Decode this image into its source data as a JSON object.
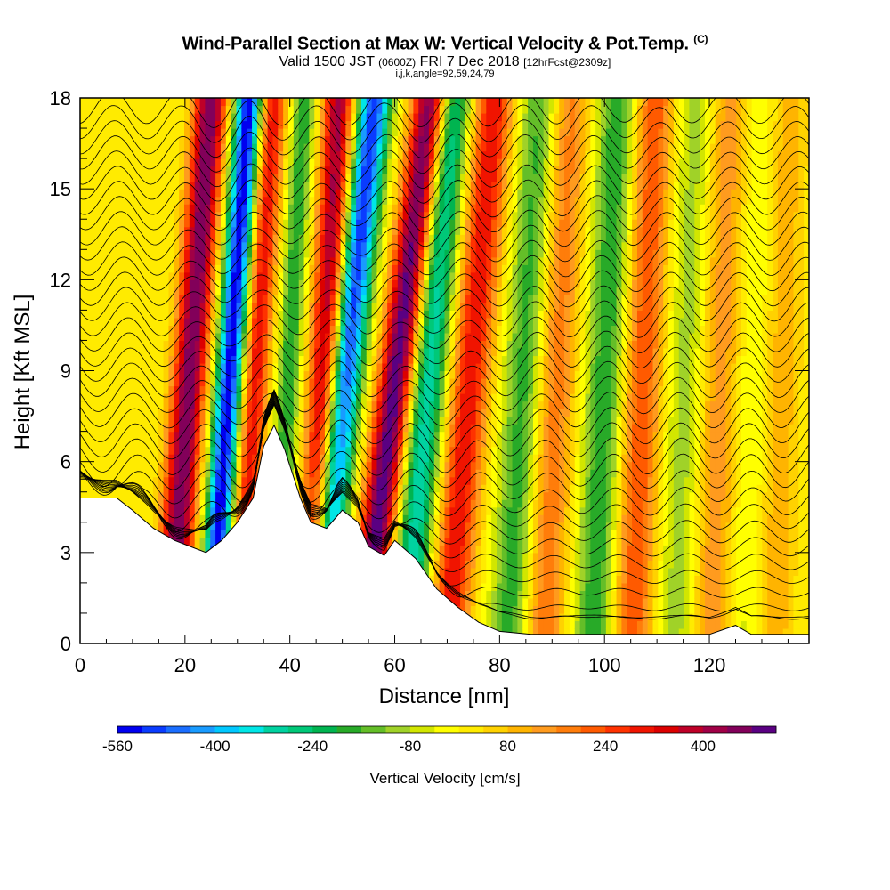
{
  "title": {
    "main": "Wind-Parallel Section at Max W: Vertical Velocity & Pot.Temp.",
    "mark": "(C)",
    "valid_prefix": "Valid 1500 JST",
    "valid_utc": "(0600Z)",
    "valid_date": "FRI 7 Dec 2018",
    "forecast": "[12hrFcst@2309z]",
    "params": "i,j,k,angle=92,59,24,79"
  },
  "chart_data": {
    "type": "heatmap",
    "xlabel": "Distance [nm]",
    "ylabel": "Height [Kft MSL]",
    "xlim": [
      0,
      139
    ],
    "ylim": [
      0,
      18
    ],
    "xticks": [
      0,
      20,
      40,
      60,
      80,
      100,
      120
    ],
    "yticks": [
      0,
      3,
      6,
      9,
      12,
      15,
      18
    ],
    "grid": false,
    "colorbar": {
      "label": "Vertical Velocity [cm/s]",
      "placement": "bottom",
      "range": [
        -560,
        520
      ],
      "step": 40,
      "tick_labels": [
        -560,
        -400,
        -240,
        -80,
        80,
        240,
        400
      ],
      "colors": [
        "#0000f0",
        "#0a3cff",
        "#1a6eff",
        "#199bff",
        "#00c8ff",
        "#00e6e6",
        "#00d2a0",
        "#00c878",
        "#00b450",
        "#28aa28",
        "#64be28",
        "#a0d228",
        "#d2e600",
        "#ffff00",
        "#ffeb00",
        "#ffd200",
        "#ffb400",
        "#ff9b1e",
        "#ff7d0a",
        "#ff5a00",
        "#ff3200",
        "#f01400",
        "#dc0000",
        "#be0028",
        "#a00046",
        "#82005a",
        "#5a0082"
      ]
    },
    "updraft_bands": [
      {
        "x_base": 17,
        "lean": 0.44,
        "width": 3.2,
        "w": 480
      },
      {
        "x_base": 30,
        "lean": 0.38,
        "width": 2.6,
        "w": 320
      },
      {
        "x_base": 44,
        "lean": 0.3,
        "width": 3.0,
        "w": 420
      },
      {
        "x_base": 54,
        "lean": 0.72,
        "width": 3.4,
        "w": 520
      },
      {
        "x_base": 70,
        "lean": 0.5,
        "width": 3.8,
        "w": 320
      },
      {
        "x_base": 88,
        "lean": 0.28,
        "width": 4.2,
        "w": 200
      },
      {
        "x_base": 105,
        "lean": 0.25,
        "width": 4.0,
        "w": 240
      },
      {
        "x_base": 120,
        "lean": 0.2,
        "width": 4.5,
        "w": 160
      },
      {
        "x_base": 132,
        "lean": 0.15,
        "width": 4.0,
        "w": 120
      }
    ],
    "downdraft_bands": [
      {
        "x_base": 25,
        "lean": 0.4,
        "width": 2.6,
        "w": -560
      },
      {
        "x_base": 37,
        "lean": 0.32,
        "width": 2.2,
        "w": -200
      },
      {
        "x_base": 45,
        "lean": 0.62,
        "width": 3.2,
        "w": -520
      },
      {
        "x_base": 62,
        "lean": 0.5,
        "width": 3.6,
        "w": -320
      },
      {
        "x_base": 82,
        "lean": 0.34,
        "width": 4.0,
        "w": -200
      },
      {
        "x_base": 98,
        "lean": 0.26,
        "width": 4.0,
        "w": -200
      },
      {
        "x_base": 114,
        "lean": 0.22,
        "width": 4.2,
        "w": -120
      },
      {
        "x_base": 127,
        "lean": 0.18,
        "width": 4.0,
        "w": -80
      }
    ],
    "terrain": {
      "distance": [
        0,
        7,
        10,
        14,
        18,
        21,
        24,
        27,
        30,
        33,
        35,
        37,
        39,
        42,
        44,
        47,
        50,
        53,
        55,
        58,
        60,
        64,
        68,
        72,
        76,
        80,
        86,
        92,
        100,
        110,
        120,
        125,
        128,
        135,
        139
      ],
      "height": [
        4.8,
        4.8,
        4.4,
        3.8,
        3.4,
        3.2,
        3.0,
        3.4,
        4.0,
        4.8,
        6.5,
        7.2,
        6.4,
        4.8,
        4.0,
        3.8,
        4.4,
        4.0,
        3.2,
        2.9,
        3.4,
        2.8,
        1.8,
        1.2,
        0.7,
        0.4,
        0.3,
        0.3,
        0.3,
        0.3,
        0.3,
        0.6,
        0.3,
        0.3,
        0.3
      ]
    },
    "theta_contours": {
      "count": 36,
      "spacing_kft": 0.5,
      "amplitude_kft": 0.55
    }
  }
}
